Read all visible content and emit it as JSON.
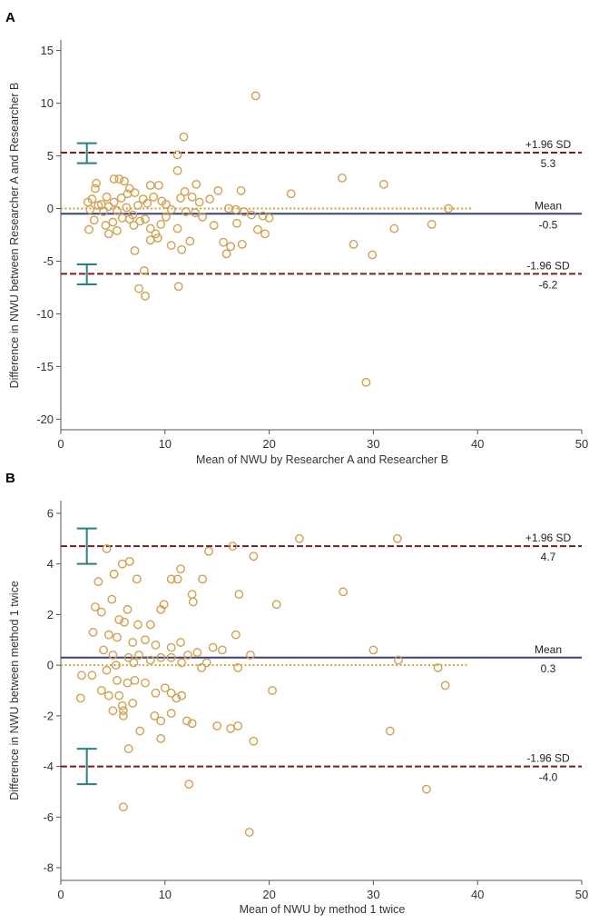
{
  "colors": {
    "sd_line": "#7a1f1f",
    "mean_line": "#3b3f7a",
    "zero_line": "#d4a040",
    "points": "#d1a050",
    "ci_bars": "#2a7f7f",
    "axis": "#555555"
  },
  "chart_data": [
    {
      "type": "scatter",
      "panel": "A",
      "title": "",
      "xlabel": "Mean of NWU by  Researcher A and  Researcher B",
      "ylabel": "Difference in NWU between Researcher A and  Researcher B",
      "xlim": [
        0,
        50
      ],
      "ylim": [
        -21,
        16
      ],
      "xticks": [
        0,
        10,
        20,
        30,
        40,
        50
      ],
      "yticks": [
        -20,
        -15,
        -10,
        -5,
        0,
        5,
        10,
        15
      ],
      "zero_line_end_x": 39.5,
      "reference_lines": [
        {
          "name": "+1.96 SD",
          "label": "+1.96 SD",
          "value_label": "5.3",
          "y": 5.3,
          "style": "dashed"
        },
        {
          "name": "Mean",
          "label": "Mean",
          "value_label": "-0.5",
          "y": -0.5,
          "style": "solid"
        },
        {
          "name": "-1.96 SD",
          "label": "-1.96 SD",
          "value_label": "-6.2",
          "y": -6.2,
          "style": "dashed"
        }
      ],
      "ci_bars": [
        {
          "x": 2.5,
          "low": 4.3,
          "high": 6.2
        },
        {
          "x": 2.5,
          "low": -7.2,
          "high": -5.3
        }
      ],
      "points": [
        [
          18.7,
          10.7
        ],
        [
          11.8,
          6.8
        ],
        [
          11.2,
          5.1
        ],
        [
          11.2,
          3.6
        ],
        [
          27.0,
          2.9
        ],
        [
          31.0,
          2.3
        ],
        [
          22.1,
          1.4
        ],
        [
          17.3,
          1.7
        ],
        [
          15.1,
          1.7
        ],
        [
          13.0,
          2.3
        ],
        [
          9.4,
          2.2
        ],
        [
          8.6,
          2.2
        ],
        [
          3.3,
          1.9
        ],
        [
          5.1,
          2.8
        ],
        [
          5.6,
          2.8
        ],
        [
          6.1,
          2.6
        ],
        [
          3.4,
          2.4
        ],
        [
          6.6,
          1.9
        ],
        [
          7.1,
          1.5
        ],
        [
          6.4,
          1.4
        ],
        [
          5.8,
          1.0
        ],
        [
          4.4,
          1.1
        ],
        [
          2.6,
          0.6
        ],
        [
          3.0,
          0.9
        ],
        [
          3.9,
          0.4
        ],
        [
          5.1,
          0.6
        ],
        [
          4.6,
          0.2
        ],
        [
          3.6,
          0.3
        ],
        [
          2.8,
          -0.1
        ],
        [
          4.1,
          -0.3
        ],
        [
          5.4,
          -0.2
        ],
        [
          6.3,
          0.1
        ],
        [
          7.4,
          0.3
        ],
        [
          7.9,
          0.9
        ],
        [
          8.3,
          0.5
        ],
        [
          8.9,
          1.1
        ],
        [
          9.7,
          0.7
        ],
        [
          10.1,
          0.4
        ],
        [
          10.6,
          -0.1
        ],
        [
          11.5,
          1.0
        ],
        [
          11.9,
          1.6
        ],
        [
          12.6,
          1.1
        ],
        [
          13.3,
          0.6
        ],
        [
          14.3,
          0.9
        ],
        [
          16.1,
          0.0
        ],
        [
          16.8,
          -0.1
        ],
        [
          17.6,
          -0.3
        ],
        [
          18.3,
          -0.6
        ],
        [
          19.4,
          -0.7
        ],
        [
          20.0,
          -0.9
        ],
        [
          3.2,
          -1.1
        ],
        [
          4.3,
          -1.6
        ],
        [
          5.0,
          -1.3
        ],
        [
          5.9,
          -0.9
        ],
        [
          6.6,
          -1.0
        ],
        [
          7.0,
          -1.6
        ],
        [
          7.6,
          -1.2
        ],
        [
          8.1,
          -1.0
        ],
        [
          8.6,
          -1.9
        ],
        [
          9.1,
          -2.4
        ],
        [
          9.6,
          -1.5
        ],
        [
          10.1,
          -0.8
        ],
        [
          10.6,
          -3.5
        ],
        [
          11.2,
          -1.9
        ],
        [
          11.6,
          -3.9
        ],
        [
          12.4,
          -3.1
        ],
        [
          12.9,
          -0.4
        ],
        [
          13.6,
          -0.8
        ],
        [
          14.7,
          -1.6
        ],
        [
          15.6,
          -3.2
        ],
        [
          16.3,
          -3.6
        ],
        [
          16.9,
          -1.4
        ],
        [
          17.4,
          -3.4
        ],
        [
          18.9,
          -2.0
        ],
        [
          19.6,
          -2.4
        ],
        [
          2.7,
          -2.0
        ],
        [
          4.6,
          -2.4
        ],
        [
          5.4,
          -2.1
        ],
        [
          7.1,
          -4.0
        ],
        [
          8.6,
          -3.0
        ],
        [
          7.5,
          -7.6
        ],
        [
          8.1,
          -8.3
        ],
        [
          11.3,
          -7.4
        ],
        [
          8.0,
          -5.9
        ],
        [
          15.9,
          -4.3
        ],
        [
          28.1,
          -3.4
        ],
        [
          29.9,
          -4.4
        ],
        [
          32.0,
          -1.9
        ],
        [
          35.6,
          -1.5
        ],
        [
          37.2,
          0.0
        ],
        [
          29.3,
          -16.5
        ],
        [
          9.3,
          -2.8
        ],
        [
          12.0,
          -0.3
        ],
        [
          6.9,
          -0.6
        ]
      ]
    },
    {
      "type": "scatter",
      "panel": "B",
      "title": "",
      "xlabel": "Mean of NWU by method 1 twice",
      "ylabel": "Difference in NWU between method 1 twice",
      "xlim": [
        0,
        50
      ],
      "ylim": [
        -8.5,
        6.5
      ],
      "xticks": [
        0,
        10,
        20,
        30,
        40,
        50
      ],
      "yticks": [
        -8,
        -6,
        -4,
        -2,
        0,
        2,
        4,
        6
      ],
      "zero_line_end_x": 39.0,
      "reference_lines": [
        {
          "name": "+1.96 SD",
          "label": "+1.96 SD",
          "value_label": "4.7",
          "y": 4.7,
          "style": "dashed"
        },
        {
          "name": "Mean",
          "label": "Mean",
          "value_label": "0.3",
          "y": 0.3,
          "style": "solid"
        },
        {
          "name": "-1.96 SD",
          "label": "-1.96 SD",
          "value_label": "-4.0",
          "y": -4.0,
          "style": "dashed"
        }
      ],
      "ci_bars": [
        {
          "x": 2.5,
          "low": 4.0,
          "high": 5.4
        },
        {
          "x": 2.5,
          "low": -4.7,
          "high": -3.3
        }
      ],
      "points": [
        [
          22.9,
          5.0
        ],
        [
          32.3,
          5.0
        ],
        [
          16.5,
          4.7
        ],
        [
          4.4,
          4.6
        ],
        [
          14.2,
          4.5
        ],
        [
          18.5,
          4.3
        ],
        [
          6.6,
          4.1
        ],
        [
          5.9,
          4.0
        ],
        [
          11.5,
          3.8
        ],
        [
          5.1,
          3.6
        ],
        [
          10.6,
          3.4
        ],
        [
          11.2,
          3.4
        ],
        [
          13.6,
          3.4
        ],
        [
          3.6,
          3.3
        ],
        [
          7.3,
          3.4
        ],
        [
          12.6,
          2.8
        ],
        [
          17.1,
          2.8
        ],
        [
          27.1,
          2.9
        ],
        [
          12.7,
          2.5
        ],
        [
          20.7,
          2.4
        ],
        [
          3.3,
          2.3
        ],
        [
          4.9,
          2.6
        ],
        [
          6.4,
          2.2
        ],
        [
          3.9,
          2.1
        ],
        [
          9.6,
          2.2
        ],
        [
          9.9,
          2.4
        ],
        [
          5.6,
          1.8
        ],
        [
          6.1,
          1.7
        ],
        [
          7.4,
          1.6
        ],
        [
          8.6,
          1.6
        ],
        [
          3.1,
          1.3
        ],
        [
          4.6,
          1.2
        ],
        [
          5.4,
          1.1
        ],
        [
          6.9,
          0.9
        ],
        [
          8.1,
          1.0
        ],
        [
          9.1,
          0.8
        ],
        [
          10.6,
          0.7
        ],
        [
          11.5,
          0.9
        ],
        [
          13.1,
          0.5
        ],
        [
          14.6,
          0.7
        ],
        [
          16.8,
          1.2
        ],
        [
          4.1,
          0.6
        ],
        [
          5.0,
          0.4
        ],
        [
          6.5,
          0.3
        ],
        [
          7.5,
          0.4
        ],
        [
          8.6,
          0.2
        ],
        [
          9.6,
          0.3
        ],
        [
          10.6,
          0.3
        ],
        [
          11.6,
          0.1
        ],
        [
          12.2,
          0.4
        ],
        [
          13.5,
          -0.1
        ],
        [
          14.0,
          0.1
        ],
        [
          17.0,
          -0.1
        ],
        [
          18.2,
          0.4
        ],
        [
          30.0,
          0.6
        ],
        [
          32.4,
          0.2
        ],
        [
          36.2,
          -0.1
        ],
        [
          3.0,
          -0.4
        ],
        [
          4.4,
          -0.2
        ],
        [
          5.4,
          -0.6
        ],
        [
          6.4,
          -0.7
        ],
        [
          7.1,
          -0.6
        ],
        [
          2.0,
          -0.4
        ],
        [
          1.9,
          -1.3
        ],
        [
          3.9,
          -1.0
        ],
        [
          4.6,
          -1.2
        ],
        [
          5.6,
          -1.2
        ],
        [
          5.9,
          -1.6
        ],
        [
          6.9,
          -1.5
        ],
        [
          8.1,
          -0.7
        ],
        [
          9.1,
          -1.1
        ],
        [
          10.0,
          -0.9
        ],
        [
          10.6,
          -1.1
        ],
        [
          11.1,
          -1.3
        ],
        [
          11.6,
          -1.2
        ],
        [
          9.0,
          -2.0
        ],
        [
          9.6,
          -2.2
        ],
        [
          10.6,
          -1.9
        ],
        [
          12.1,
          -2.2
        ],
        [
          12.6,
          -2.3
        ],
        [
          15.0,
          -2.4
        ],
        [
          16.3,
          -2.5
        ],
        [
          17.0,
          -2.4
        ],
        [
          18.5,
          -3.0
        ],
        [
          6.0,
          -1.8
        ],
        [
          5.0,
          -1.8
        ],
        [
          6.0,
          -2.0
        ],
        [
          6.5,
          -3.3
        ],
        [
          7.6,
          -2.6
        ],
        [
          9.6,
          -2.9
        ],
        [
          12.3,
          -4.7
        ],
        [
          20.3,
          -1.0
        ],
        [
          31.6,
          -2.6
        ],
        [
          35.1,
          -4.9
        ],
        [
          36.9,
          -0.8
        ],
        [
          6.0,
          -5.6
        ],
        [
          18.1,
          -6.6
        ],
        [
          5.3,
          0.0
        ],
        [
          7.0,
          0.1
        ],
        [
          15.5,
          0.6
        ]
      ]
    }
  ]
}
